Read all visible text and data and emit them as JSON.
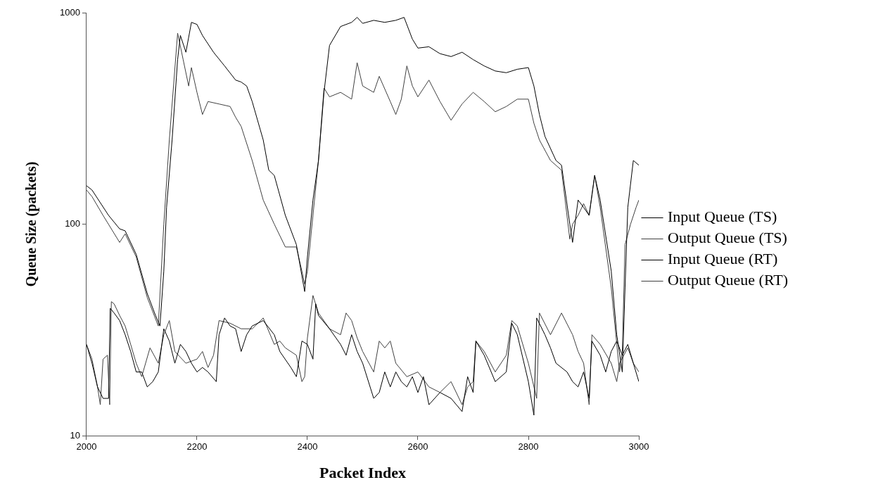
{
  "chart_data": {
    "type": "line",
    "xlabel": "Packet Index",
    "ylabel": "Queue Size (packets)",
    "log": "y",
    "grid": false,
    "legend": "right",
    "marker": "none",
    "line_style": "solid",
    "xlim": [
      2000,
      3000
    ],
    "xticks": [
      2000,
      2200,
      2400,
      2600,
      2800,
      3000
    ],
    "ylim": [
      10,
      1000
    ],
    "yticks": [
      10,
      100,
      1000
    ],
    "series": [
      {
        "name": "Input Queue (TS)",
        "color": "#000000",
        "x": [
          2000,
          2010,
          2040,
          2060,
          2070,
          2090,
          2110,
          2125,
          2133,
          2140,
          2145,
          2155,
          2165,
          2170,
          2180,
          2190,
          2200,
          2210,
          2230,
          2250,
          2270,
          2280,
          2290,
          2300,
          2320,
          2330,
          2335,
          2340,
          2360,
          2380,
          2395,
          2400,
          2410,
          2420,
          2430,
          2440,
          2460,
          2480,
          2490,
          2500,
          2520,
          2540,
          2560,
          2575,
          2590,
          2600,
          2620,
          2640,
          2660,
          2680,
          2700,
          2720,
          2740,
          2760,
          2780,
          2800,
          2810,
          2820,
          2830,
          2850,
          2860,
          2875,
          2880,
          2890,
          2900,
          2910,
          2920,
          2930,
          2950,
          2960,
          2970,
          2975,
          2980,
          2990,
          3000
        ],
        "values": [
          152,
          145,
          110,
          95,
          93,
          72,
          47,
          37,
          33,
          60,
          120,
          250,
          600,
          780,
          650,
          900,
          880,
          780,
          650,
          560,
          480,
          470,
          450,
          380,
          250,
          180,
          175,
          170,
          110,
          80,
          48,
          70,
          130,
          200,
          420,
          700,
          860,
          900,
          950,
          890,
          920,
          900,
          920,
          950,
          750,
          680,
          690,
          640,
          620,
          650,
          600,
          560,
          530,
          520,
          540,
          550,
          450,
          330,
          260,
          200,
          190,
          100,
          82,
          130,
          120,
          110,
          170,
          130,
          60,
          30,
          20,
          50,
          120,
          200,
          190
        ]
      },
      {
        "name": "Output Queue (TS)",
        "color": "#404040",
        "x": [
          2000,
          2010,
          2030,
          2060,
          2070,
          2090,
          2110,
          2130,
          2140,
          2150,
          2165,
          2175,
          2185,
          2190,
          2200,
          2210,
          2220,
          2240,
          2260,
          2270,
          2280,
          2300,
          2320,
          2340,
          2360,
          2380,
          2390,
          2395,
          2400,
          2410,
          2420,
          2430,
          2440,
          2460,
          2480,
          2490,
          2500,
          2520,
          2530,
          2550,
          2560,
          2570,
          2580,
          2590,
          2600,
          2620,
          2640,
          2660,
          2680,
          2700,
          2720,
          2740,
          2760,
          2780,
          2800,
          2810,
          2820,
          2840,
          2860,
          2875,
          2880,
          2890,
          2900,
          2910,
          2920,
          2930,
          2950,
          2965,
          2970,
          2975,
          2985,
          2995,
          3000
        ],
        "values": [
          145,
          135,
          110,
          82,
          90,
          70,
          45,
          33,
          100,
          250,
          800,
          600,
          450,
          550,
          420,
          330,
          380,
          370,
          360,
          320,
          290,
          200,
          130,
          100,
          78,
          78,
          60,
          52,
          60,
          110,
          200,
          440,
          400,
          420,
          390,
          580,
          450,
          420,
          500,
          380,
          330,
          390,
          560,
          450,
          400,
          480,
          380,
          310,
          370,
          420,
          380,
          340,
          360,
          390,
          390,
          300,
          250,
          200,
          180,
          85,
          100,
          110,
          125,
          110,
          170,
          120,
          50,
          20,
          25,
          80,
          100,
          120,
          130
        ]
      },
      {
        "name": "Input Queue (RT)",
        "color": "#000000",
        "x": [
          2000,
          2010,
          2020,
          2030,
          2040,
          2043,
          2050,
          2060,
          2070,
          2080,
          2090,
          2100,
          2110,
          2120,
          2130,
          2140,
          2150,
          2160,
          2170,
          2180,
          2190,
          2200,
          2210,
          2220,
          2235,
          2240,
          2250,
          2260,
          2270,
          2280,
          2290,
          2300,
          2320,
          2340,
          2350,
          2370,
          2380,
          2390,
          2400,
          2410,
          2415,
          2420,
          2440,
          2460,
          2470,
          2480,
          2490,
          2500,
          2520,
          2530,
          2540,
          2550,
          2560,
          2570,
          2580,
          2590,
          2600,
          2610,
          2620,
          2640,
          2660,
          2680,
          2690,
          2700,
          2705,
          2720,
          2740,
          2760,
          2770,
          2780,
          2800,
          2810,
          2815,
          2830,
          2840,
          2850,
          2870,
          2880,
          2890,
          2900,
          2910,
          2915,
          2930,
          2940,
          2950,
          2960,
          2970,
          2980,
          2990,
          3000
        ],
        "values": [
          27,
          22,
          17,
          15,
          15,
          40,
          38,
          35,
          30,
          25,
          20,
          20,
          17,
          18,
          20,
          32,
          28,
          22,
          27,
          25,
          22,
          20,
          21,
          20,
          18,
          30,
          36,
          33,
          32,
          25,
          30,
          33,
          35,
          30,
          25,
          21,
          19,
          28,
          27,
          23,
          42,
          37,
          32,
          27,
          24,
          30,
          25,
          22,
          15,
          16,
          20,
          17,
          20,
          18,
          17,
          19,
          16,
          19,
          14,
          16,
          15,
          13,
          19,
          16,
          28,
          24,
          18,
          20,
          34,
          30,
          18,
          12.5,
          36,
          30,
          26,
          22,
          20,
          18,
          17,
          20,
          15,
          28,
          24,
          20,
          25,
          28,
          24,
          27,
          22,
          18
        ]
      },
      {
        "name": "Output Queue (RT)",
        "color": "#404040",
        "x": [
          2000,
          2010,
          2020,
          2025,
          2030,
          2038,
          2042,
          2045,
          2050,
          2060,
          2070,
          2080,
          2090,
          2100,
          2115,
          2130,
          2140,
          2150,
          2160,
          2180,
          2200,
          2210,
          2220,
          2230,
          2240,
          2260,
          2280,
          2300,
          2320,
          2340,
          2350,
          2360,
          2380,
          2390,
          2395,
          2400,
          2410,
          2420,
          2440,
          2460,
          2470,
          2480,
          2490,
          2500,
          2520,
          2530,
          2540,
          2550,
          2560,
          2580,
          2600,
          2620,
          2640,
          2660,
          2680,
          2690,
          2700,
          2705,
          2720,
          2740,
          2760,
          2770,
          2780,
          2800,
          2815,
          2820,
          2840,
          2860,
          2880,
          2890,
          2900,
          2910,
          2915,
          2930,
          2950,
          2960,
          2965,
          2980,
          2990,
          3000
        ],
        "values": [
          27,
          23,
          17,
          14,
          23,
          24,
          14,
          43,
          42,
          37,
          33,
          27,
          22,
          19,
          26,
          22,
          30,
          35,
          25,
          22,
          23,
          25,
          21,
          24,
          35,
          34,
          32,
          32,
          36,
          27,
          28,
          26,
          24,
          18,
          19,
          29,
          46,
          38,
          32,
          30,
          38,
          35,
          29,
          25,
          20,
          28,
          26,
          28,
          22,
          19,
          20,
          17,
          16,
          18,
          14,
          17,
          18,
          28,
          25,
          20,
          24,
          35,
          33,
          22,
          15,
          38,
          30,
          38,
          30,
          25,
          22,
          14,
          30,
          27,
          22,
          18,
          22,
          26,
          22,
          20
        ]
      }
    ]
  }
}
